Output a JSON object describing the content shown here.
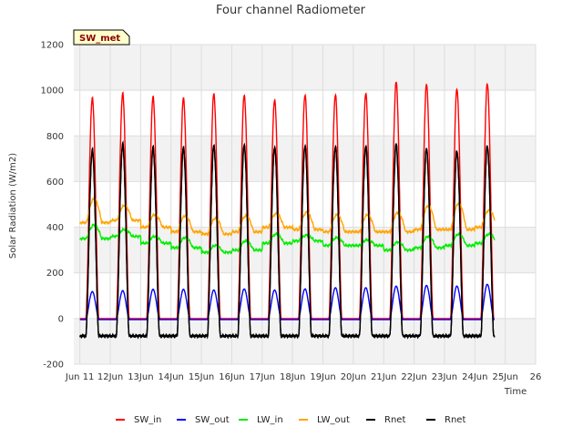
{
  "chart_data": {
    "type": "line",
    "title": "Four channel Radiometer",
    "xlabel": "Time",
    "ylabel": "Solar Radiation (W/m2)",
    "site_badge": "SW_met",
    "xlim": [
      10.8,
      26
    ],
    "ylim": [
      -200,
      1200
    ],
    "yticks": [
      -200,
      0,
      200,
      400,
      600,
      800,
      1000,
      1200
    ],
    "xticks": [
      {
        "day": 11,
        "label": "Jun 11"
      },
      {
        "day": 12,
        "label": "12Jun"
      },
      {
        "day": 13,
        "label": "13Jun"
      },
      {
        "day": 14,
        "label": "14Jun"
      },
      {
        "day": 15,
        "label": "15Jun"
      },
      {
        "day": 16,
        "label": "16Jun"
      },
      {
        "day": 17,
        "label": "17Jun"
      },
      {
        "day": 18,
        "label": "18Jun"
      },
      {
        "day": 19,
        "label": "19Jun"
      },
      {
        "day": 20,
        "label": "20Jun"
      },
      {
        "day": 21,
        "label": "21Jun"
      },
      {
        "day": 22,
        "label": "22Jun"
      },
      {
        "day": 23,
        "label": "23Jun"
      },
      {
        "day": 24,
        "label": "24Jun"
      },
      {
        "day": 25,
        "label": "25Jun"
      },
      {
        "day": 26,
        "label": "26"
      }
    ],
    "shaded_bands": [
      [
        -200,
        0
      ],
      [
        200,
        400
      ],
      [
        600,
        800
      ],
      [
        1000,
        1200
      ]
    ],
    "grid": true,
    "daily_start": 11,
    "series": [
      {
        "name": "SW_in",
        "color": "#ff0000",
        "kind": "shortwave",
        "daily_peak": [
          965,
          985,
          970,
          965,
          985,
          980,
          960,
          980,
          980,
          985,
          1035,
          1025,
          1005,
          1030
        ],
        "night_value": 0
      },
      {
        "name": "SW_out",
        "color": "#0000ff",
        "kind": "shortwave",
        "daily_peak": [
          118,
          122,
          128,
          128,
          125,
          130,
          125,
          130,
          135,
          135,
          142,
          145,
          142,
          150
        ],
        "night_value": -5
      },
      {
        "name": "LW_in",
        "color": "#00ee00",
        "kind": "longwave",
        "daily_peak": [
          410,
          390,
          360,
          355,
          320,
          340,
          370,
          365,
          355,
          345,
          335,
          360,
          370,
          370
        ],
        "daily_base": [
          350,
          360,
          330,
          310,
          290,
          300,
          330,
          340,
          320,
          320,
          300,
          310,
          320,
          330
        ]
      },
      {
        "name": "LW_out",
        "color": "#ffa500",
        "kind": "longwave",
        "daily_peak": [
          525,
          495,
          455,
          450,
          440,
          450,
          460,
          465,
          455,
          455,
          465,
          495,
          505,
          475
        ],
        "daily_base": [
          420,
          430,
          400,
          380,
          370,
          380,
          400,
          390,
          380,
          380,
          380,
          390,
          390,
          400
        ]
      },
      {
        "name": "Rnet",
        "color": "#000000",
        "kind": "net",
        "daily_peak": [
          740,
          765,
          750,
          750,
          760,
          765,
          755,
          760,
          755,
          755,
          765,
          745,
          735,
          760
        ],
        "night_value": -75
      },
      {
        "name": "Rnet",
        "color": "#000000",
        "kind": "net",
        "daily_peak": [
          735,
          760,
          745,
          745,
          755,
          760,
          750,
          755,
          750,
          750,
          760,
          740,
          730,
          755
        ],
        "night_value": -78
      }
    ]
  }
}
